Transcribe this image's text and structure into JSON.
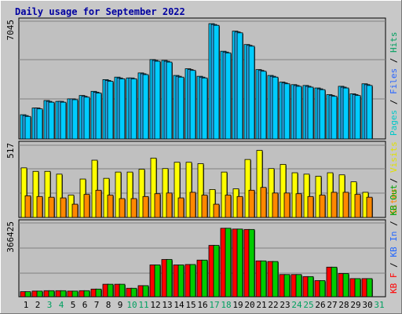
{
  "chart_data": {
    "type": "bar",
    "title": "Daily usage for September 2022",
    "categories": [
      "1",
      "2",
      "3",
      "4",
      "5",
      "6",
      "7",
      "8",
      "9",
      "10",
      "11",
      "12",
      "13",
      "14",
      "15",
      "16",
      "17",
      "18",
      "19",
      "20",
      "21",
      "22",
      "23",
      "24",
      "25",
      "26",
      "27",
      "28",
      "29",
      "30",
      "31"
    ],
    "weekend_days": [
      "3",
      "4",
      "10",
      "11",
      "17",
      "18",
      "24",
      "25",
      "31"
    ],
    "panels": [
      {
        "id": "top",
        "max_label": "7045",
        "ymax": 7045,
        "series": [
          {
            "name": "Hits",
            "color": "#00ccff",
            "values": [
              1450,
              1850,
              2300,
              2250,
              2400,
              2600,
              2850,
              3550,
              3700,
              3650,
              3950,
              4750,
              4700,
              3800,
              4200,
              3750,
              6900,
              5250,
              6450,
              5650,
              4150,
              3800,
              3400,
              3250,
              3200,
              3050,
              2650,
              3150,
              2700,
              3300,
              0
            ]
          },
          {
            "name": "Files",
            "color": "#33aaee",
            "values": [
              1400,
              1850,
              2250,
              2250,
              2400,
              2550,
              2800,
              3500,
              3650,
              3650,
              3900,
              4700,
              4650,
              3750,
              4150,
              3700,
              6850,
              5200,
              6400,
              5600,
              4100,
              3750,
              3350,
              3200,
              3150,
              3000,
              2600,
              3100,
              2650,
              3250,
              0
            ]
          },
          {
            "name": "Pages",
            "color": "#00ccff",
            "values": [
              1350,
              1800,
              2200,
              2200,
              2350,
              2500,
              2750,
              3450,
              3600,
              3600,
              3850,
              4650,
              4600,
              3700,
              4100,
              3650,
              6800,
              5150,
              6350,
              5550,
              4050,
              3700,
              3300,
              3150,
              3100,
              2950,
              2550,
              3050,
              2600,
              3200,
              0
            ]
          }
        ],
        "legend": [
          {
            "text": "Pages",
            "color": "#00c8c8"
          },
          {
            "text": "Files",
            "color": "#2a66ff"
          },
          {
            "text": "Hits",
            "color": "#00a060"
          }
        ]
      },
      {
        "id": "middle",
        "max_label": "517",
        "ymax": 517,
        "series": [
          {
            "name": "Visits",
            "color": "#ffff00",
            "values": [
              355,
              330,
              330,
              310,
              160,
              275,
              410,
              280,
              325,
              325,
              345,
              425,
              350,
              395,
              395,
              385,
              200,
              325,
              205,
              415,
              480,
              350,
              380,
              320,
              310,
              295,
              320,
              305,
              255,
              180,
              0
            ]
          },
          {
            "name": "Sites",
            "color": "#ff8800",
            "values": [
              155,
              150,
              145,
              140,
              95,
              165,
              195,
              160,
              135,
              135,
              150,
              170,
              175,
              140,
              180,
              160,
              95,
              160,
              150,
              195,
              215,
              175,
              175,
              170,
              150,
              160,
              180,
              180,
              165,
              145,
              0
            ]
          }
        ],
        "legend": [
          {
            "text": "Sites",
            "color": "#ff8800"
          },
          {
            "text": "Visits",
            "color": "#e0e000"
          }
        ]
      },
      {
        "id": "bottom",
        "max_label": "366425",
        "ymax": 366425,
        "series": [
          {
            "name": "KB F",
            "color": "#ff0000",
            "values": [
              25000,
              28000,
              30000,
              30000,
              28000,
              30000,
              38000,
              62000,
              62000,
              42000,
              55000,
              158000,
              185000,
              158000,
              160000,
              182000,
              255000,
              340000,
              336000,
              334000,
              178000,
              175000,
              110000,
              110000,
              100000,
              80000,
              147000,
              115000,
              90000,
              90000,
              0
            ]
          },
          {
            "name": "KB In",
            "color": "#2266ff",
            "values": [
              0,
              0,
              0,
              0,
              0,
              0,
              0,
              0,
              0,
              0,
              0,
              0,
              0,
              0,
              0,
              0,
              0,
              0,
              0,
              0,
              0,
              0,
              0,
              0,
              0,
              0,
              0,
              0,
              0,
              0,
              0
            ]
          },
          {
            "name": "KB Out",
            "color": "#00cc00",
            "values": [
              25000,
              28000,
              30000,
              30000,
              28000,
              30000,
              38000,
              62000,
              62000,
              42000,
              55000,
              158000,
              185000,
              158000,
              160000,
              182000,
              255000,
              340000,
              336000,
              334000,
              178000,
              175000,
              110000,
              110000,
              100000,
              80000,
              147000,
              115000,
              90000,
              90000,
              0
            ]
          }
        ],
        "legend": [
          {
            "text": "KB F",
            "color": "#ff0000"
          },
          {
            "text": "KB In",
            "color": "#2266ff"
          },
          {
            "text": "KB Out",
            "color": "#00a000"
          }
        ]
      }
    ]
  }
}
